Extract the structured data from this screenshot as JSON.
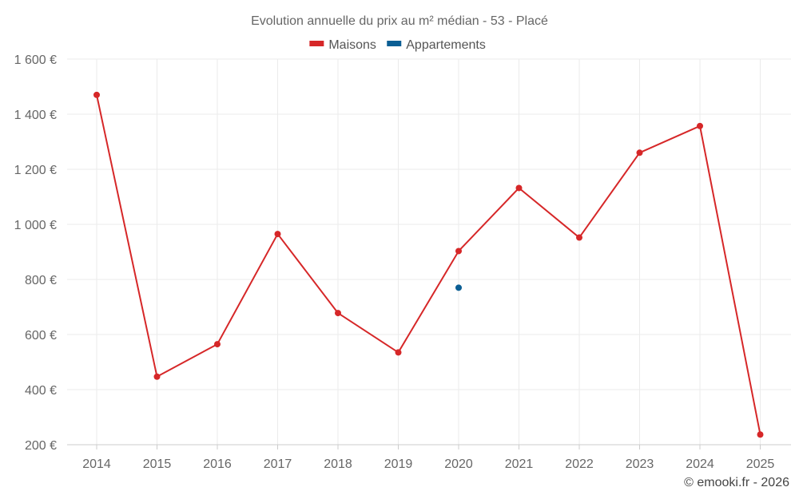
{
  "chart_data": {
    "type": "line",
    "title": "Evolution annuelle du prix au m² médian - 53 - Placé",
    "categories": [
      "2014",
      "2015",
      "2016",
      "2017",
      "2018",
      "2019",
      "2020",
      "2021",
      "2022",
      "2023",
      "2024",
      "2025"
    ],
    "series": [
      {
        "name": "Maisons",
        "color": "#d62728",
        "values": [
          1470,
          447,
          565,
          965,
          678,
          535,
          903,
          1132,
          952,
          1260,
          1357,
          237
        ]
      },
      {
        "name": "Appartements",
        "color": "#0b5e94",
        "values": [
          null,
          null,
          null,
          null,
          null,
          null,
          770,
          null,
          null,
          null,
          null,
          null
        ]
      }
    ],
    "ylim": [
      200,
      1600
    ],
    "yticks": [
      200,
      400,
      600,
      800,
      1000,
      1200,
      1400,
      1600
    ],
    "ytick_labels": [
      "200 €",
      "400 €",
      "600 €",
      "800 €",
      "1 000 €",
      "1 200 €",
      "1 400 €",
      "1 600 €"
    ],
    "xlabel": "",
    "ylabel": "",
    "grid": true,
    "legend_position": "top-center"
  },
  "credit": "© emooki.fr - 2026"
}
